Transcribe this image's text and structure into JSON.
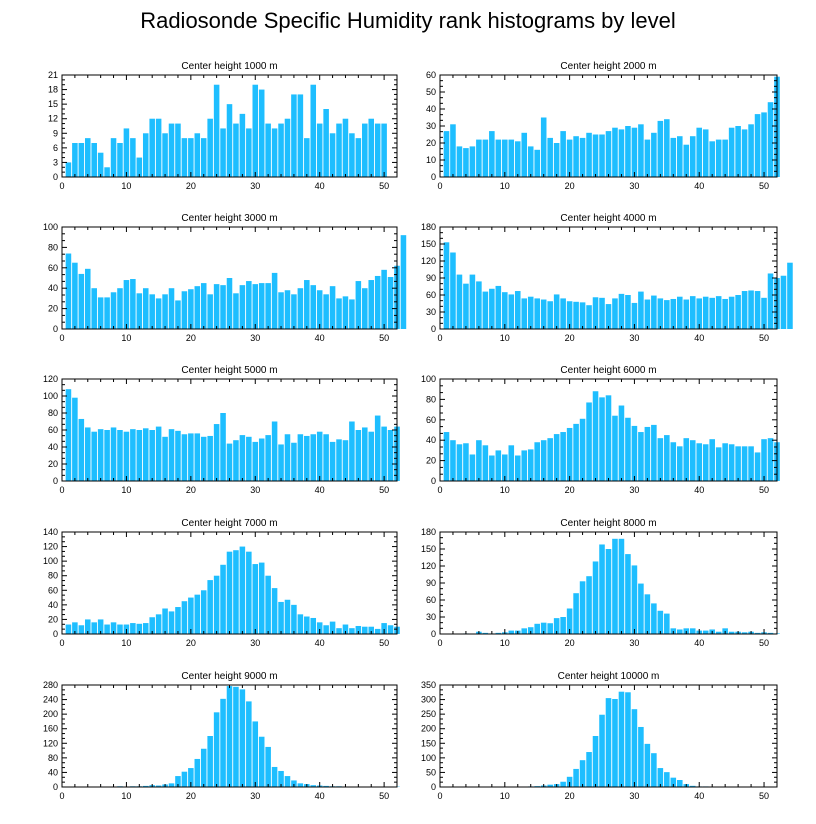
{
  "title": "Radiosonde Specific Humidity rank histograms by level",
  "colors": {
    "bar": "#1ebeff",
    "bar_edge": "#ffffff",
    "axis": "#000000"
  },
  "chart_data": [
    {
      "type": "bar",
      "title": "Center height 1000 m",
      "xlim": [
        0,
        52
      ],
      "xticks": [
        0,
        10,
        20,
        30,
        40,
        50
      ],
      "ylim": [
        0,
        21
      ],
      "yticks": [
        0,
        3,
        6,
        9,
        12,
        15,
        18,
        21
      ],
      "values": [
        3,
        7,
        7,
        8,
        7,
        5,
        2,
        8,
        7,
        10,
        8,
        4,
        9,
        12,
        12,
        9,
        11,
        11,
        8,
        8,
        9,
        8,
        12,
        19,
        10,
        15,
        11,
        13,
        10,
        19,
        18,
        11,
        10,
        11,
        12,
        17,
        17,
        8,
        19,
        11,
        14,
        9,
        11,
        12,
        9,
        8,
        11,
        12,
        11,
        11
      ]
    },
    {
      "type": "bar",
      "title": "Center height 2000 m",
      "xlim": [
        0,
        52
      ],
      "xticks": [
        0,
        10,
        20,
        30,
        40,
        50
      ],
      "ylim": [
        0,
        60
      ],
      "yticks": [
        0,
        10,
        20,
        30,
        40,
        50,
        60
      ],
      "values": [
        27,
        31,
        18,
        17,
        18,
        22,
        22,
        27,
        22,
        22,
        22,
        21,
        26,
        18,
        16,
        35,
        23,
        20,
        27,
        22,
        24,
        23,
        26,
        25,
        25,
        27,
        29,
        28,
        30,
        29,
        31,
        22,
        26,
        33,
        34,
        23,
        24,
        19,
        24,
        29,
        28,
        21,
        22,
        22,
        29,
        30,
        28,
        31,
        37,
        38,
        44,
        59
      ]
    },
    {
      "type": "bar",
      "title": "Center height 3000 m",
      "xlim": [
        0,
        52
      ],
      "xticks": [
        0,
        10,
        20,
        30,
        40,
        50
      ],
      "ylim": [
        0,
        100
      ],
      "yticks": [
        0,
        20,
        40,
        60,
        80,
        100
      ],
      "values": [
        74,
        65,
        54,
        59,
        40,
        31,
        31,
        36,
        40,
        48,
        49,
        35,
        40,
        34,
        30,
        34,
        40,
        28,
        37,
        39,
        42,
        45,
        34,
        44,
        43,
        50,
        35,
        43,
        47,
        44,
        45,
        45,
        55,
        36,
        38,
        34,
        40,
        48,
        43,
        38,
        34,
        42,
        30,
        32,
        29,
        47,
        40,
        48,
        52,
        58,
        51,
        62,
        92
      ]
    },
    {
      "type": "bar",
      "title": "Center height 4000 m",
      "xlim": [
        0,
        52
      ],
      "xticks": [
        0,
        10,
        20,
        30,
        40,
        50
      ],
      "ylim": [
        0,
        180
      ],
      "yticks": [
        0,
        30,
        60,
        90,
        120,
        150,
        180
      ],
      "values": [
        153,
        135,
        96,
        80,
        96,
        84,
        66,
        71,
        76,
        65,
        61,
        67,
        54,
        57,
        54,
        52,
        49,
        61,
        54,
        49,
        48,
        47,
        42,
        56,
        55,
        44,
        54,
        62,
        60,
        46,
        66,
        52,
        59,
        54,
        51,
        53,
        57,
        52,
        58,
        54,
        57,
        55,
        58,
        53,
        57,
        60,
        67,
        68,
        67,
        55,
        98,
        90,
        94,
        117
      ]
    },
    {
      "type": "bar",
      "title": "Center height 5000 m",
      "xlim": [
        0,
        52
      ],
      "xticks": [
        0,
        10,
        20,
        30,
        40,
        50
      ],
      "ylim": [
        0,
        120
      ],
      "yticks": [
        0,
        20,
        40,
        60,
        80,
        100,
        120
      ],
      "values": [
        108,
        98,
        73,
        63,
        58,
        61,
        60,
        63,
        60,
        58,
        61,
        60,
        62,
        60,
        64,
        52,
        61,
        59,
        55,
        56,
        56,
        52,
        53,
        67,
        80,
        44,
        48,
        54,
        52,
        46,
        50,
        54,
        70,
        43,
        55,
        45,
        55,
        53,
        55,
        58,
        55,
        46,
        49,
        48,
        70,
        60,
        63,
        58,
        77,
        64,
        60,
        64
      ]
    },
    {
      "type": "bar",
      "title": "Center height 6000 m",
      "xlim": [
        0,
        52
      ],
      "xticks": [
        0,
        10,
        20,
        30,
        40,
        50
      ],
      "ylim": [
        0,
        100
      ],
      "yticks": [
        0,
        20,
        40,
        60,
        80,
        100
      ],
      "values": [
        48,
        40,
        36,
        37,
        26,
        40,
        35,
        25,
        30,
        26,
        35,
        25,
        30,
        31,
        38,
        40,
        42,
        46,
        48,
        52,
        56,
        61,
        77,
        88,
        82,
        84,
        64,
        74,
        62,
        54,
        48,
        53,
        55,
        42,
        45,
        38,
        34,
        42,
        40,
        37,
        36,
        41,
        33,
        37,
        36,
        34,
        34,
        34,
        28,
        41,
        42,
        38
      ]
    },
    {
      "type": "bar",
      "title": "Center height 7000 m",
      "xlim": [
        0,
        52
      ],
      "xticks": [
        0,
        10,
        20,
        30,
        40,
        50
      ],
      "ylim": [
        0,
        140
      ],
      "yticks": [
        0,
        20,
        40,
        60,
        80,
        100,
        120,
        140
      ],
      "values": [
        13,
        16,
        12,
        20,
        16,
        20,
        13,
        16,
        13,
        13,
        15,
        14,
        15,
        23,
        27,
        35,
        31,
        37,
        45,
        50,
        54,
        60,
        74,
        80,
        95,
        113,
        115,
        120,
        113,
        96,
        98,
        80,
        63,
        44,
        47,
        40,
        27,
        24,
        22,
        16,
        12,
        17,
        8,
        13,
        8,
        11,
        10,
        10,
        7,
        15,
        12,
        10
      ]
    },
    {
      "type": "bar",
      "title": "Center height 8000 m",
      "xlim": [
        0,
        52
      ],
      "xticks": [
        0,
        10,
        20,
        30,
        40,
        50
      ],
      "ylim": [
        0,
        180
      ],
      "yticks": [
        0,
        30,
        60,
        90,
        120,
        150,
        180
      ],
      "values": [
        0,
        0,
        0,
        1,
        0,
        4,
        2,
        1,
        2,
        3,
        6,
        6,
        10,
        12,
        18,
        20,
        19,
        28,
        30,
        45,
        72,
        93,
        102,
        128,
        158,
        150,
        168,
        168,
        141,
        121,
        89,
        70,
        54,
        41,
        36,
        10,
        8,
        10,
        10,
        6,
        6,
        8,
        4,
        10,
        4,
        4,
        3,
        4,
        2,
        3,
        2,
        1
      ]
    },
    {
      "type": "bar",
      "title": "Center height 9000 m",
      "xlim": [
        0,
        52
      ],
      "xticks": [
        0,
        10,
        20,
        30,
        40,
        50
      ],
      "ylim": [
        0,
        280
      ],
      "yticks": [
        0,
        40,
        80,
        120,
        160,
        200,
        240,
        280
      ],
      "values": [
        0,
        0,
        0,
        0,
        0,
        0,
        0,
        1,
        2,
        1,
        2,
        2,
        3,
        5,
        4,
        7,
        10,
        30,
        42,
        52,
        77,
        105,
        140,
        205,
        242,
        277,
        275,
        268,
        235,
        180,
        138,
        110,
        55,
        44,
        30,
        18,
        10,
        8,
        5,
        4,
        3,
        2,
        2,
        1,
        1,
        1,
        1,
        1,
        1,
        1,
        0,
        1
      ]
    },
    {
      "type": "bar",
      "title": "Center height 10000 m",
      "xlim": [
        0,
        52
      ],
      "xticks": [
        0,
        10,
        20,
        30,
        40,
        50
      ],
      "ylim": [
        0,
        350
      ],
      "yticks": [
        0,
        50,
        100,
        150,
        200,
        250,
        300,
        350
      ],
      "values": [
        0,
        0,
        0,
        0,
        0,
        0,
        0,
        0,
        0,
        0,
        0,
        0,
        1,
        2,
        3,
        5,
        8,
        10,
        18,
        35,
        62,
        92,
        120,
        175,
        248,
        305,
        302,
        327,
        325,
        267,
        206,
        148,
        116,
        65,
        51,
        32,
        24,
        10,
        4,
        2,
        2,
        1,
        1,
        1,
        1,
        1,
        1,
        0,
        0,
        1,
        0,
        0
      ]
    }
  ]
}
